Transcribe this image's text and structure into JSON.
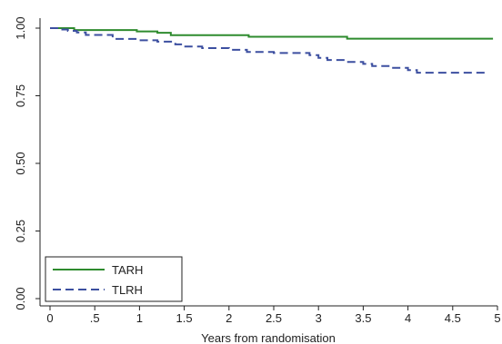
{
  "chart_data": {
    "type": "line",
    "title": "",
    "xlabel": "Years from randomisation",
    "ylabel": "",
    "xlim": [
      0,
      5
    ],
    "ylim": [
      0,
      1
    ],
    "x_ticks": [
      "0",
      ".5",
      "1",
      "1.5",
      "2",
      "2.5",
      "3",
      "3.5",
      "4",
      "4.5",
      "5"
    ],
    "y_ticks": [
      "0.00",
      "0.25",
      "0.50",
      "0.75",
      "1.00"
    ],
    "grid": false,
    "legend_position": "bottom-left",
    "step": true,
    "series": [
      {
        "name": "TARH",
        "color": "#2e8b2e",
        "dash": "solid",
        "x": [
          0,
          0.27,
          0.97,
          1.2,
          1.35,
          2.22,
          3.32,
          4.95
        ],
        "y": [
          1.0,
          0.993,
          0.988,
          0.983,
          0.974,
          0.968,
          0.961,
          0.961
        ]
      },
      {
        "name": "TLRH",
        "color": "#3c4fa0",
        "dash": "dashed",
        "x": [
          0,
          0.1,
          0.2,
          0.3,
          0.4,
          0.7,
          1.0,
          1.2,
          1.4,
          1.5,
          1.7,
          2.0,
          2.2,
          2.5,
          2.9,
          3.0,
          3.1,
          3.3,
          3.5,
          3.6,
          3.8,
          4.0,
          4.1,
          4.9
        ],
        "y": [
          1.0,
          0.995,
          0.99,
          0.984,
          0.975,
          0.96,
          0.955,
          0.95,
          0.94,
          0.932,
          0.926,
          0.92,
          0.912,
          0.908,
          0.9,
          0.89,
          0.882,
          0.875,
          0.868,
          0.86,
          0.853,
          0.845,
          0.835,
          0.835
        ]
      }
    ]
  }
}
